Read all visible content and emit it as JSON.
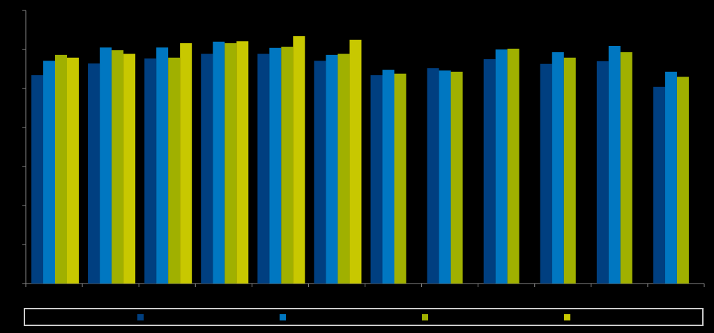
{
  "chart_data": {
    "type": "bar",
    "categories": [
      null,
      null,
      null,
      null,
      null,
      null,
      null,
      null,
      null,
      null,
      null,
      null
    ],
    "series": [
      {
        "color": "#003f80",
        "values": [
          5.34,
          5.64,
          5.77,
          5.89,
          5.89,
          5.71,
          5.34,
          5.52,
          5.75,
          5.63,
          5.7,
          5.04
        ]
      },
      {
        "color": "#0077c1",
        "values": [
          5.71,
          6.05,
          6.05,
          6.2,
          6.04,
          5.86,
          5.48,
          5.46,
          6.0,
          5.93,
          6.09,
          5.43
        ]
      },
      {
        "color": "#a0b000",
        "values": [
          5.86,
          5.98,
          5.79,
          6.16,
          6.07,
          5.89,
          5.38,
          5.43,
          6.02,
          5.79,
          5.93,
          5.3
        ]
      },
      {
        "color": "#c8c800",
        "values": [
          5.79,
          5.89,
          6.16,
          6.21,
          6.34,
          6.25,
          null,
          null,
          null,
          null,
          null,
          null
        ]
      }
    ],
    "ylim": [
      0,
      7
    ],
    "yticks": [
      0,
      1,
      2,
      3,
      4,
      5,
      6,
      7
    ]
  }
}
